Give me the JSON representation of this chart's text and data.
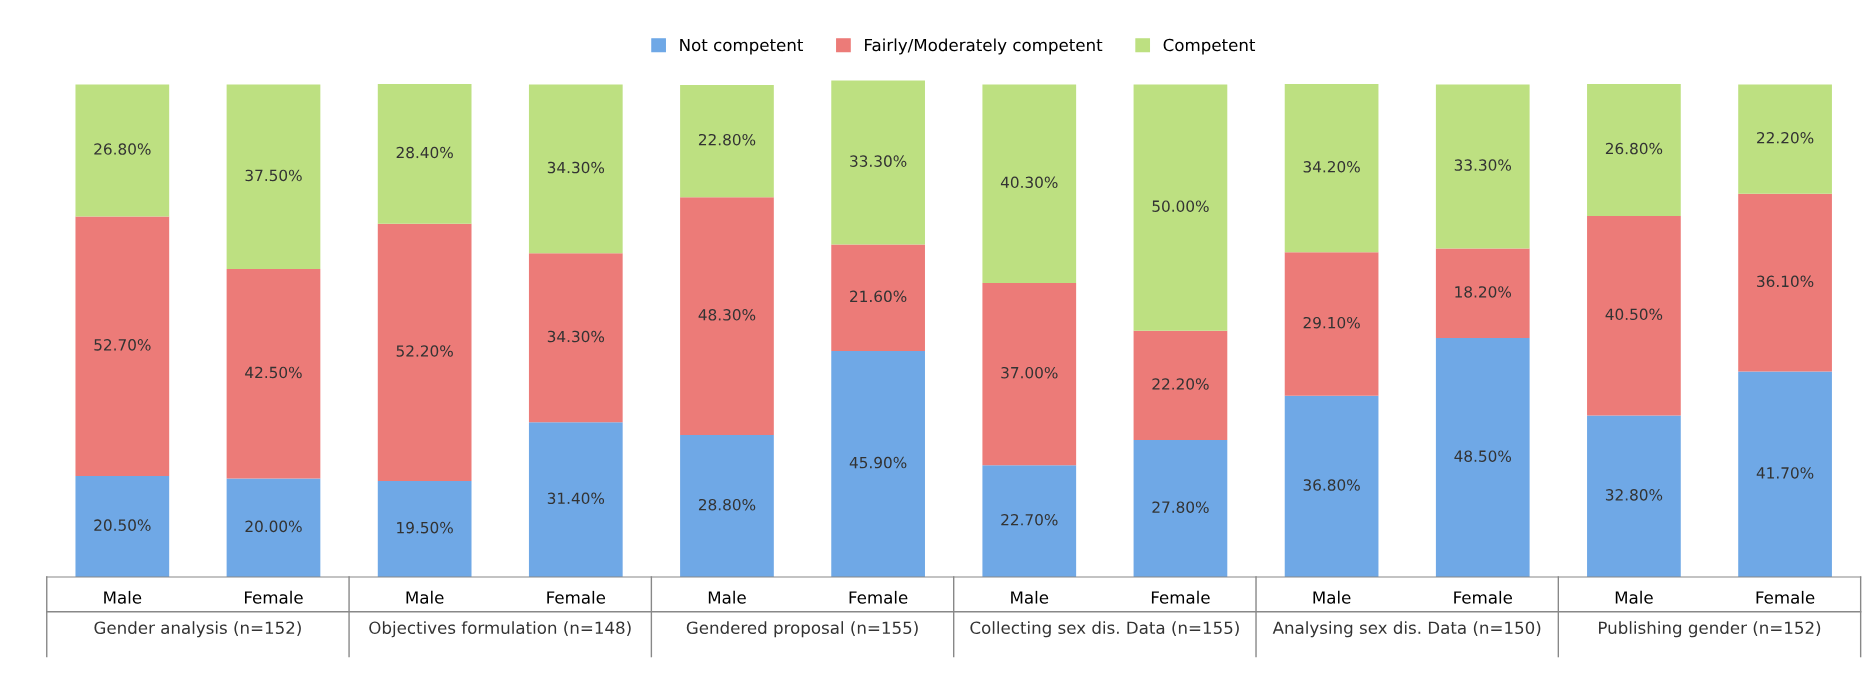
{
  "chart_data": {
    "type": "bar",
    "stacked": true,
    "categories": [
      "Male",
      "Female",
      "Male",
      "Female",
      "Male",
      "Female",
      "Male",
      "Female",
      "Male",
      "Female",
      "Male",
      "Female"
    ],
    "series": [
      {
        "name": "Not competent",
        "color": "#6fa8e6",
        "values": [
          20.5,
          20.0,
          19.5,
          31.4,
          28.8,
          45.9,
          22.7,
          27.8,
          36.8,
          48.5,
          32.8,
          41.7
        ],
        "value_labels": [
          "20.50%",
          "20.00%",
          "19.50%",
          "31.40%",
          "28.80%",
          "45.90%",
          "22.70%",
          "27.80%",
          "36.80%",
          "48.50%",
          "32.80%",
          "41.70%"
        ]
      },
      {
        "name": "Fairly/Moderately competent",
        "color": "#ec7b78",
        "values": [
          52.7,
          42.5,
          52.2,
          34.3,
          48.3,
          21.6,
          37.0,
          22.2,
          29.1,
          18.2,
          40.5,
          36.1
        ],
        "value_labels": [
          "52.70%",
          "42.50%",
          "52.20%",
          "34.30%",
          "48.30%",
          "21.60%",
          "37.00%",
          "22.20%",
          "29.10%",
          "18.20%",
          "40.50%",
          "36.10%"
        ]
      },
      {
        "name": "Competent",
        "color": "#bde081",
        "values": [
          26.8,
          37.5,
          28.4,
          34.3,
          22.8,
          33.3,
          40.3,
          50.0,
          34.2,
          33.3,
          26.8,
          22.2
        ],
        "value_labels": [
          "26.80%",
          "37.50%",
          "28.40%",
          "34.30%",
          "22.80%",
          "33.30%",
          "40.30%",
          "50.00%",
          "34.20%",
          "33.30%",
          "26.80%",
          "22.20%"
        ]
      }
    ],
    "ylim": [
      0,
      101
    ],
    "tick_labels": "x",
    "legend": "top",
    "grid": false,
    "annotations": [
      "Gender analysis (n=152)",
      "Objectives formulation (n=148)",
      "Gendered proposal (n=155)",
      "Collecting sex dis. Data (n=155)",
      "Analysing sex dis. Data (n=150)",
      "Publishing gender (n=152)"
    ]
  }
}
